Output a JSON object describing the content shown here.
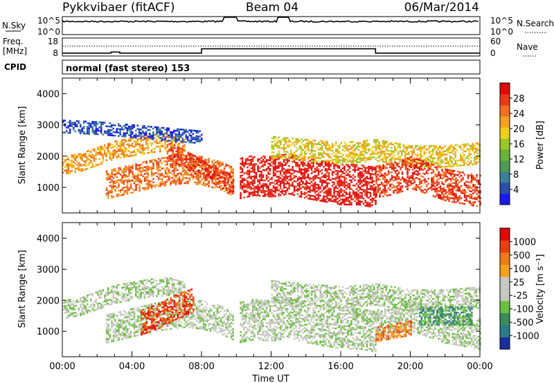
{
  "header": {
    "station": "Pykkvibaer (fitACF)",
    "beam": "Beam 04",
    "date": "06/Mar/2014"
  },
  "strip_nsky": {
    "left_label": "N.Sky",
    "left_ticks": [
      "10^5",
      "10^0"
    ],
    "right_ticks": [
      "10^5",
      "10^0"
    ],
    "right_label": "N.Search"
  },
  "strip_freq": {
    "left_label_1": "Freq.",
    "left_label_2": "[MHz]",
    "left_ticks": [
      "18",
      "8"
    ],
    "right_ticks": [
      "60",
      "0"
    ],
    "right_label": "Nave",
    "freq_segments": [
      {
        "t0": 0,
        "t1": 2.8,
        "v": 9.6
      },
      {
        "t0": 2.8,
        "t1": 3.3,
        "v": 10.2
      },
      {
        "t0": 3.3,
        "t1": 8.0,
        "v": 9.6
      },
      {
        "t0": 8.0,
        "t1": 18.0,
        "v": 12.0
      },
      {
        "t0": 18.0,
        "t1": 24.0,
        "v": 9.6
      }
    ],
    "nave_reference": 33
  },
  "cpid": {
    "label": "CPID",
    "text": "normal (fast stereo) 153"
  },
  "chart_data": [
    {
      "type": "heatmap",
      "name": "power",
      "ylabel": "Slant Range [km]",
      "ylim": [
        180,
        4500
      ],
      "yticks": [
        "4000",
        "3000",
        "2000",
        "1000"
      ],
      "ytick_values": [
        4000,
        3000,
        2000,
        1000
      ],
      "xlim": [
        0,
        24
      ],
      "colorbar": {
        "label": "Power [dB]",
        "ticks": [
          "28",
          "24",
          "20",
          "16",
          "12",
          "8",
          "4"
        ],
        "colors": [
          "#1a1af0",
          "#2a4fa8",
          "#3b7f96",
          "#4f9a55",
          "#6ab238",
          "#9cc728",
          "#f0d01c",
          "#f5a020",
          "#f07020",
          "#e83a18",
          "#e00a0a"
        ]
      },
      "echo_bands": [
        {
          "t": [
            0.0,
            1.0,
            2.0,
            3.0,
            4.0,
            5.0,
            6.0,
            7.0
          ],
          "r": [
            1700,
            1800,
            2000,
            2200,
            2300,
            2400,
            2450,
            2300
          ],
          "w": 300,
          "level": 7
        },
        {
          "t": [
            2.5,
            4.0,
            5.5,
            7.0,
            8.0,
            9.0,
            9.8
          ],
          "r": [
            1100,
            1300,
            1500,
            1600,
            1550,
            1400,
            1200
          ],
          "w": 450,
          "level": 8
        },
        {
          "t": [
            6.0,
            7.0,
            8.0,
            9.0,
            9.8
          ],
          "r": [
            2200,
            1900,
            1600,
            1300,
            1100
          ],
          "w": 300,
          "level": 9
        },
        {
          "t": [
            10.2,
            11.0,
            12.0,
            13.0,
            14.0,
            15.0,
            16.0,
            17.0,
            18.0
          ],
          "r": [
            1300,
            1400,
            1350,
            1450,
            1300,
            1200,
            1100,
            1100,
            1000
          ],
          "w": 650,
          "level": 10
        },
        {
          "t": [
            12.0,
            14.0,
            16.0,
            18.0,
            20.0,
            22.0,
            24.0
          ],
          "r": [
            2300,
            2200,
            2100,
            2200,
            2000,
            2000,
            2100
          ],
          "w": 350,
          "level": 6
        },
        {
          "t": [
            18.0,
            19.0,
            20.0,
            21.0,
            22.0,
            23.0,
            24.0
          ],
          "r": [
            1200,
            1300,
            1500,
            1300,
            1100,
            1000,
            900
          ],
          "w": 500,
          "level": 9
        },
        {
          "t": [
            0.0,
            2.0,
            4.0,
            6.0,
            8.0
          ],
          "r": [
            2950,
            2900,
            2800,
            2700,
            2600
          ],
          "w": 220,
          "level": 1
        }
      ]
    },
    {
      "type": "heatmap",
      "name": "velocity",
      "ylabel": "Slant Range [km]",
      "ylim": [
        180,
        4500
      ],
      "yticks": [
        "4000",
        "3000",
        "2000",
        "1000"
      ],
      "ytick_values": [
        4000,
        3000,
        2000,
        1000
      ],
      "xlim": [
        0,
        24
      ],
      "xlabel": "Time UT",
      "xticks": [
        "00:00",
        "04:00",
        "08:00",
        "12:00",
        "16:00",
        "20:00",
        "00:00"
      ],
      "xtick_values": [
        0,
        4,
        8,
        12,
        16,
        20,
        24
      ],
      "colorbar": {
        "label": "Velocity [m s⁻¹]",
        "ticks": [
          "1000",
          "500",
          "100",
          "25",
          "-25",
          "-100",
          "-500",
          "-1000"
        ],
        "colors": [
          "#1a2fa0",
          "#2a7a8a",
          "#3a8a5a",
          "#6cc040",
          "#c8c8c0",
          "#c8c8c0",
          "#f5a020",
          "#f07a1a",
          "#e84010",
          "#e00a0a"
        ]
      },
      "echo_bands": [
        {
          "t": [
            0.0,
            1.0,
            2.0,
            3.0,
            4.0,
            5.0,
            6.0,
            7.0
          ],
          "r": [
            1700,
            1800,
            2000,
            2200,
            2300,
            2400,
            2450,
            2300
          ],
          "w": 300,
          "level": 4
        },
        {
          "t": [
            2.5,
            4.0,
            5.5,
            7.0,
            8.0,
            9.0,
            9.8
          ],
          "r": [
            1100,
            1300,
            1500,
            1600,
            1550,
            1400,
            1200
          ],
          "w": 450,
          "level": 4
        },
        {
          "t": [
            10.2,
            11.0,
            12.0,
            13.0,
            14.0,
            15.0,
            16.0,
            17.0,
            18.0
          ],
          "r": [
            1300,
            1400,
            1350,
            1450,
            1300,
            1200,
            1100,
            1100,
            1000
          ],
          "w": 650,
          "level": 4
        },
        {
          "t": [
            12.0,
            14.0,
            16.0,
            18.0,
            20.0,
            22.0,
            24.0
          ],
          "r": [
            2300,
            2200,
            2100,
            2200,
            2000,
            2000,
            2100
          ],
          "w": 350,
          "level": 4
        },
        {
          "t": [
            18.0,
            19.0,
            20.0,
            21.0,
            22.0,
            23.0,
            24.0
          ],
          "r": [
            1200,
            1300,
            1500,
            1300,
            1100,
            1000,
            900
          ],
          "w": 500,
          "level": 4
        },
        {
          "t": [
            4.5,
            5.5,
            6.5,
            7.5
          ],
          "r": [
            1300,
            1500,
            1800,
            2000
          ],
          "w": 400,
          "level": 8
        },
        {
          "t": [
            18.0,
            19.0,
            20.0
          ],
          "r": [
            900,
            1000,
            1100
          ],
          "w": 250,
          "level": 7
        },
        {
          "t": [
            20.5,
            22.0,
            23.5
          ],
          "r": [
            1500,
            1500,
            1500
          ],
          "w": 300,
          "level": 2
        }
      ]
    }
  ]
}
